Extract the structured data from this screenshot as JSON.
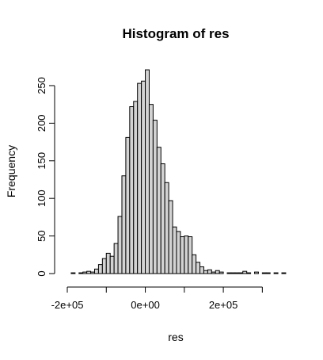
{
  "chart_data": {
    "type": "histogram",
    "title": "Histogram of res",
    "xlabel": "res",
    "ylabel": "Frequency",
    "xlim": [
      -200000,
      350000
    ],
    "ylim": [
      0,
      270
    ],
    "x_ticks": [
      {
        "value": -200000,
        "label": "-2e+05"
      },
      {
        "value": 0,
        "label": "0e+00"
      },
      {
        "value": 200000,
        "label": "2e+05"
      }
    ],
    "y_ticks": [
      {
        "value": 0,
        "label": "0"
      },
      {
        "value": 50,
        "label": "50"
      },
      {
        "value": 100,
        "label": "100"
      },
      {
        "value": 150,
        "label": "150"
      },
      {
        "value": 200,
        "label": "200"
      },
      {
        "value": 250,
        "label": "250"
      }
    ],
    "bin_width": 10000,
    "bin_start": -190000,
    "counts": [
      1,
      0,
      1,
      2,
      3,
      2,
      6,
      12,
      20,
      27,
      23,
      40,
      76,
      130,
      181,
      222,
      229,
      253,
      256,
      271,
      225,
      204,
      168,
      146,
      121,
      97,
      62,
      56,
      49,
      50,
      49,
      25,
      15,
      9,
      4,
      5,
      2,
      4,
      2,
      0,
      1,
      1,
      1,
      1,
      3,
      1,
      0,
      2,
      0,
      1,
      1,
      0,
      1,
      0,
      1
    ]
  }
}
